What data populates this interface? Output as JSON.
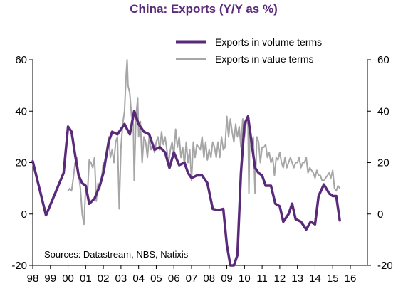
{
  "chart_data": {
    "type": "line",
    "title": "China: Exports (Y/Y as %)",
    "source": "Sources: Datastream, NBS, Natixis",
    "xlabel": "",
    "ylabel": "",
    "x_ticks": [
      "98",
      "99",
      "00",
      "01",
      "02",
      "03",
      "04",
      "05",
      "06",
      "07",
      "08",
      "09",
      "10",
      "11",
      "12",
      "13",
      "14",
      "15",
      "16"
    ],
    "x_range": [
      1998,
      2016
    ],
    "y_ticks": [
      60,
      40,
      20,
      0,
      -20
    ],
    "ylim": [
      -20,
      60
    ],
    "right_axis": true,
    "grid": false,
    "legend_position": "top-right",
    "colors": {
      "volume": "#5a2a7a",
      "value": "#a6a6a6",
      "title": "#5a2a7a",
      "axis": "#000000"
    },
    "series": [
      {
        "name": "Exports in volume terms",
        "key": "volume",
        "points": [
          [
            1998.0,
            20.5
          ],
          [
            1998.75,
            -0.5
          ],
          [
            1999.75,
            16
          ],
          [
            2000.0,
            34
          ],
          [
            2000.2,
            32
          ],
          [
            2000.4,
            23
          ],
          [
            2000.6,
            15
          ],
          [
            2000.8,
            12
          ],
          [
            2001.0,
            11
          ],
          [
            2001.2,
            4
          ],
          [
            2001.5,
            6
          ],
          [
            2001.8,
            11
          ],
          [
            2002.0,
            16
          ],
          [
            2002.3,
            28
          ],
          [
            2002.5,
            32
          ],
          [
            2002.8,
            31
          ],
          [
            2003.0,
            33
          ],
          [
            2003.2,
            35
          ],
          [
            2003.5,
            31
          ],
          [
            2003.75,
            40
          ],
          [
            2004.0,
            35
          ],
          [
            2004.3,
            32
          ],
          [
            2004.6,
            31
          ],
          [
            2004.9,
            25
          ],
          [
            2005.2,
            26
          ],
          [
            2005.5,
            24
          ],
          [
            2005.75,
            18
          ],
          [
            2006.0,
            24
          ],
          [
            2006.3,
            19
          ],
          [
            2006.6,
            20
          ],
          [
            2006.8,
            16
          ],
          [
            2007.0,
            14
          ],
          [
            2007.3,
            15
          ],
          [
            2007.6,
            15
          ],
          [
            2007.9,
            12
          ],
          [
            2008.2,
            2
          ],
          [
            2008.5,
            1.5
          ],
          [
            2008.8,
            2
          ],
          [
            2009.0,
            -12
          ],
          [
            2009.2,
            -20
          ],
          [
            2009.4,
            -20
          ],
          [
            2009.6,
            -16
          ],
          [
            2009.8,
            16
          ],
          [
            2010.0,
            35
          ],
          [
            2010.2,
            38
          ],
          [
            2010.4,
            28
          ],
          [
            2010.6,
            18
          ],
          [
            2010.8,
            16
          ],
          [
            2011.0,
            15
          ],
          [
            2011.2,
            11
          ],
          [
            2011.5,
            11
          ],
          [
            2011.75,
            4
          ],
          [
            2012.0,
            3
          ],
          [
            2012.2,
            -3
          ],
          [
            2012.5,
            0
          ],
          [
            2012.7,
            4
          ],
          [
            2012.9,
            -2
          ],
          [
            2013.2,
            -3
          ],
          [
            2013.5,
            -6
          ],
          [
            2013.75,
            -3
          ],
          [
            2014.0,
            -4
          ],
          [
            2014.2,
            7
          ],
          [
            2014.5,
            11.5
          ],
          [
            2014.8,
            8
          ],
          [
            2015.0,
            7
          ],
          [
            2015.2,
            7
          ],
          [
            2015.4,
            -2.5
          ]
        ]
      },
      {
        "name": "Exports in value terms",
        "key": "value",
        "points": [
          [
            2000.0,
            9
          ],
          [
            2000.1,
            10
          ],
          [
            2000.2,
            9
          ],
          [
            2000.3,
            14
          ],
          [
            2000.4,
            20
          ],
          [
            2000.5,
            22
          ],
          [
            2000.6,
            15
          ],
          [
            2000.7,
            10
          ],
          [
            2000.8,
            0
          ],
          [
            2000.9,
            -4
          ],
          [
            2001.0,
            10
          ],
          [
            2001.1,
            8
          ],
          [
            2001.2,
            21
          ],
          [
            2001.3,
            20
          ],
          [
            2001.4,
            18
          ],
          [
            2001.5,
            22
          ],
          [
            2001.6,
            5
          ],
          [
            2001.7,
            12
          ],
          [
            2001.8,
            10
          ],
          [
            2001.9,
            14
          ],
          [
            2002.0,
            20
          ],
          [
            2002.1,
            18
          ],
          [
            2002.2,
            25
          ],
          [
            2002.3,
            30
          ],
          [
            2002.4,
            22
          ],
          [
            2002.5,
            25
          ],
          [
            2002.6,
            20
          ],
          [
            2002.7,
            28
          ],
          [
            2002.8,
            30
          ],
          [
            2002.9,
            2
          ],
          [
            2003.0,
            26
          ],
          [
            2003.1,
            35
          ],
          [
            2003.2,
            40
          ],
          [
            2003.3,
            55
          ],
          [
            2003.35,
            60
          ],
          [
            2003.4,
            50
          ],
          [
            2003.5,
            47
          ],
          [
            2003.6,
            38
          ],
          [
            2003.7,
            35
          ],
          [
            2003.75,
            13
          ],
          [
            2003.85,
            38
          ],
          [
            2003.95,
            45
          ],
          [
            2004.0,
            30
          ],
          [
            2004.1,
            36
          ],
          [
            2004.2,
            20
          ],
          [
            2004.3,
            30
          ],
          [
            2004.4,
            28
          ],
          [
            2004.5,
            22
          ],
          [
            2004.6,
            30
          ],
          [
            2004.7,
            25
          ],
          [
            2004.8,
            27
          ],
          [
            2004.9,
            24
          ],
          [
            2005.0,
            28
          ],
          [
            2005.1,
            30
          ],
          [
            2005.2,
            25
          ],
          [
            2005.3,
            32
          ],
          [
            2005.4,
            27
          ],
          [
            2005.5,
            30
          ],
          [
            2005.6,
            25
          ],
          [
            2005.7,
            20
          ],
          [
            2005.8,
            25
          ],
          [
            2005.9,
            28
          ],
          [
            2006.0,
            23
          ],
          [
            2006.1,
            33
          ],
          [
            2006.2,
            26
          ],
          [
            2006.3,
            30
          ],
          [
            2006.4,
            22
          ],
          [
            2006.5,
            26
          ],
          [
            2006.6,
            19
          ],
          [
            2006.7,
            28
          ],
          [
            2006.8,
            20
          ],
          [
            2006.9,
            25
          ],
          [
            2007.0,
            13
          ],
          [
            2007.1,
            28
          ],
          [
            2007.2,
            22
          ],
          [
            2007.3,
            27
          ],
          [
            2007.4,
            26
          ],
          [
            2007.5,
            25
          ],
          [
            2007.6,
            30
          ],
          [
            2007.7,
            22
          ],
          [
            2007.8,
            28
          ],
          [
            2007.9,
            21
          ],
          [
            2008.0,
            25
          ],
          [
            2008.1,
            22
          ],
          [
            2008.2,
            28
          ],
          [
            2008.3,
            26
          ],
          [
            2008.4,
            22
          ],
          [
            2008.5,
            28
          ],
          [
            2008.6,
            22
          ],
          [
            2008.7,
            30
          ],
          [
            2008.8,
            25
          ],
          [
            2008.9,
            26
          ],
          [
            2009.0,
            38
          ],
          [
            2009.1,
            30
          ],
          [
            2009.2,
            37
          ],
          [
            2009.3,
            32
          ],
          [
            2009.4,
            28
          ],
          [
            2009.5,
            35
          ],
          [
            2009.6,
            30
          ],
          [
            2009.7,
            34
          ],
          [
            2009.8,
            26
          ],
          [
            2009.9,
            37
          ],
          [
            2010.0,
            30
          ],
          [
            2010.1,
            36
          ],
          [
            2010.2,
            35
          ],
          [
            2010.25,
            8
          ],
          [
            2010.3,
            30
          ],
          [
            2010.4,
            25
          ],
          [
            2010.5,
            30
          ],
          [
            2010.6,
            8
          ],
          [
            2010.7,
            30
          ],
          [
            2010.8,
            28
          ],
          [
            2010.9,
            20
          ],
          [
            2011.0,
            26
          ],
          [
            2011.1,
            26
          ],
          [
            2011.2,
            27
          ],
          [
            2011.3,
            22
          ],
          [
            2011.4,
            24
          ],
          [
            2011.5,
            20
          ],
          [
            2011.6,
            22
          ],
          [
            2011.7,
            15
          ],
          [
            2011.8,
            22
          ],
          [
            2011.9,
            21
          ],
          [
            2012.0,
            24
          ],
          [
            2012.1,
            20
          ],
          [
            2012.2,
            18
          ],
          [
            2012.3,
            22
          ],
          [
            2012.4,
            18
          ],
          [
            2012.5,
            20
          ],
          [
            2012.6,
            22
          ],
          [
            2012.7,
            20
          ],
          [
            2012.8,
            18
          ],
          [
            2012.9,
            20
          ],
          [
            2013.0,
            20
          ],
          [
            2013.1,
            22
          ],
          [
            2013.2,
            18
          ],
          [
            2013.3,
            20
          ],
          [
            2013.4,
            20
          ],
          [
            2013.5,
            22
          ],
          [
            2013.6,
            16
          ],
          [
            2013.7,
            18
          ],
          [
            2013.8,
            17
          ],
          [
            2013.9,
            16
          ],
          [
            2014.0,
            14
          ],
          [
            2014.1,
            17
          ],
          [
            2014.2,
            15
          ],
          [
            2014.3,
            15
          ],
          [
            2014.4,
            13
          ],
          [
            2014.5,
            13
          ],
          [
            2014.6,
            14
          ],
          [
            2014.7,
            15
          ],
          [
            2014.8,
            16
          ],
          [
            2014.9,
            14
          ],
          [
            2015.0,
            17
          ],
          [
            2015.1,
            10
          ],
          [
            2015.2,
            9
          ],
          [
            2015.3,
            11
          ],
          [
            2015.4,
            10
          ]
        ]
      }
    ]
  }
}
